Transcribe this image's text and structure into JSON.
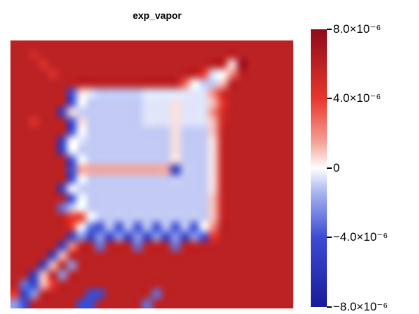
{
  "title": "exp_vapor",
  "title_color": "#000000",
  "background_color": "#ffffff",
  "chart_data": {
    "type": "heatmap",
    "title": "exp_vapor",
    "value_scale": "1e-6",
    "vmin": -8e-06,
    "vmax": 8e-06,
    "legend_position": "right",
    "grid_lines": "off",
    "colorbar": {
      "orientation": "vertical",
      "tick_values_1e6": [
        8,
        4,
        0,
        -4,
        -8
      ],
      "tick_labels": [
        "8.0×10⁻⁶",
        "4.0×10⁻⁶",
        "0",
        "−4.0×10⁻⁶",
        "−8.0×10⁻⁶"
      ]
    },
    "colormap_stops": [
      {
        "v": -8,
        "color": "#1a1a9c"
      },
      {
        "v": -4,
        "color": "#3b4cd4"
      },
      {
        "v": -1.5,
        "color": "#a5b0ee"
      },
      {
        "v": 0,
        "color": "#ffffff"
      },
      {
        "v": 1.5,
        "color": "#f4a298"
      },
      {
        "v": 4,
        "color": "#e8372d"
      },
      {
        "v": 8,
        "color": "#8e0c1a"
      }
    ],
    "grid": {
      "ncols": 30,
      "nrows": 28,
      "values_1e6": [
        [
          6,
          6,
          6,
          6,
          6,
          6,
          6,
          6,
          6,
          6,
          6,
          6,
          6,
          6,
          6,
          6,
          6,
          6,
          6,
          6,
          6,
          6,
          6,
          6,
          6,
          6,
          6,
          6,
          6,
          6
        ],
        [
          6,
          6,
          5,
          6,
          6,
          6,
          6,
          6,
          6,
          6,
          6,
          6,
          6,
          6,
          6,
          6,
          6,
          6,
          6,
          6,
          6,
          6,
          6,
          6,
          6,
          6,
          6,
          6,
          6,
          6
        ],
        [
          6,
          6,
          6,
          4.5,
          6,
          6,
          6,
          6,
          6,
          6,
          6,
          6,
          6,
          6,
          6,
          6,
          6,
          6,
          6,
          6,
          6,
          6,
          6,
          0.5,
          7.5,
          6,
          6,
          6,
          6,
          6
        ],
        [
          6,
          6,
          6,
          6,
          4.5,
          6,
          6,
          6,
          6,
          6,
          6,
          6,
          6,
          6,
          6,
          6,
          6,
          6,
          6,
          6,
          4,
          -0.5,
          0,
          2,
          6,
          6,
          6,
          6,
          6,
          6
        ],
        [
          6,
          6,
          6,
          6,
          6,
          6,
          6,
          6,
          6,
          6,
          6,
          6,
          6,
          6,
          6,
          6,
          6,
          6,
          3,
          0,
          -1,
          -1,
          1,
          6,
          6,
          6,
          6,
          6,
          6,
          6
        ],
        [
          6,
          6,
          6,
          6,
          6,
          6,
          -4,
          0.5,
          -0.5,
          -1,
          -1,
          -1,
          -1,
          -1,
          -0.5,
          -0.5,
          -0.5,
          -0.5,
          -0.5,
          -0.5,
          -0.5,
          2,
          5,
          6,
          6,
          6,
          6,
          6,
          6,
          6
        ],
        [
          6,
          6,
          6,
          6,
          6,
          6,
          -4,
          0,
          -1,
          -1,
          -1,
          -1,
          -1,
          -1,
          -0.5,
          -0.5,
          -0.5,
          0.5,
          -0.5,
          -0.5,
          -0.5,
          1,
          4,
          6,
          6,
          6,
          6,
          6,
          6,
          6
        ],
        [
          6,
          6,
          6,
          6,
          6,
          -5,
          0.5,
          -1,
          -1,
          -1,
          -1,
          -1,
          -1,
          -1,
          -0.5,
          -0.5,
          -0.5,
          0.5,
          -0.5,
          -0.5,
          -0.5,
          2,
          5,
          6,
          6,
          6,
          6,
          6,
          6,
          6
        ],
        [
          6,
          6,
          4.5,
          6,
          6,
          6,
          -4,
          0.5,
          -1,
          -1,
          -1,
          -1,
          -1,
          -1,
          -0.5,
          -0.5,
          -0.5,
          0.5,
          -0.5,
          -0.5,
          -0.5,
          1,
          5,
          6,
          6,
          6,
          6,
          6,
          6,
          6
        ],
        [
          6,
          6,
          6,
          6,
          6,
          6,
          -4,
          0,
          -1,
          -1,
          -1,
          -1,
          -1,
          -1,
          -1,
          -1,
          -1,
          0.5,
          -1,
          -1,
          -1,
          1,
          5.5,
          6,
          6,
          6,
          6,
          6,
          6,
          6
        ],
        [
          6,
          6,
          6,
          6,
          6,
          -5,
          0,
          -0.5,
          -1,
          -1,
          -1,
          -1,
          -1,
          -1,
          -1,
          -1,
          -1,
          0.5,
          -1,
          -1,
          -1,
          0.5,
          5.5,
          6,
          6,
          6,
          6,
          6,
          6,
          6
        ],
        [
          6,
          6,
          6,
          6,
          6,
          -5,
          0,
          -1,
          -1,
          -1,
          -1,
          -1,
          -1,
          -1,
          -1,
          -1,
          -1,
          0.5,
          -1,
          -1,
          -1,
          0.5,
          5.5,
          6,
          6,
          6,
          6,
          6,
          6,
          6
        ],
        [
          6,
          6,
          6,
          6,
          6,
          6,
          -4,
          0,
          -1,
          -1,
          -1,
          -1,
          -1,
          -1,
          -1,
          -1,
          -1,
          0.5,
          -1,
          -1,
          -1,
          0.5,
          5.5,
          6,
          6,
          6,
          6,
          6,
          6,
          6
        ],
        [
          6,
          6,
          6,
          6,
          6,
          6,
          -4,
          1.5,
          1.5,
          1.5,
          1.5,
          1.5,
          1.5,
          1.5,
          1.5,
          1.5,
          1.5,
          -6,
          -1,
          -1,
          -1,
          0.5,
          5.5,
          6,
          6,
          6,
          6,
          6,
          6,
          6
        ],
        [
          6,
          6,
          6,
          6,
          6,
          6,
          -4,
          0,
          -1,
          -1,
          -1,
          -1,
          -1,
          -1,
          -1,
          -1,
          -1,
          -1,
          -1,
          -1,
          -1,
          0.5,
          5.5,
          6,
          6,
          6,
          6,
          6,
          6,
          6
        ],
        [
          6,
          6,
          6,
          6,
          6,
          -5,
          0,
          -1,
          -1,
          -1,
          -1,
          -1,
          -1,
          -1,
          -1,
          -1,
          -1,
          -1,
          -1,
          -1,
          -1,
          0.5,
          5.5,
          6,
          6,
          6,
          6,
          6,
          6,
          6
        ],
        [
          6,
          6,
          6,
          6,
          6,
          6,
          -4,
          0,
          -1,
          -1,
          -1,
          -1,
          -1,
          -1,
          -1,
          -1,
          -1,
          -1,
          -1,
          -1,
          -1,
          1,
          5.5,
          6,
          6,
          6,
          6,
          6,
          6,
          6
        ],
        [
          6,
          6,
          6,
          6,
          6,
          -3,
          -1,
          0,
          -1,
          -1,
          -1,
          -1,
          -1,
          -1,
          -1,
          -1,
          -1,
          -1,
          -1,
          -1,
          -1,
          1,
          5.5,
          6,
          6,
          6,
          6,
          6,
          6,
          6
        ],
        [
          6,
          6,
          6,
          6,
          6,
          6,
          4,
          4,
          0,
          -1,
          -1,
          -1,
          -1,
          -1,
          -1,
          -1,
          -1,
          -1,
          -1,
          -1,
          -1,
          1,
          5.5,
          6,
          6,
          6,
          6,
          6,
          6,
          6
        ],
        [
          6,
          6,
          6,
          6,
          6,
          6,
          4,
          0,
          -3,
          -4,
          -1,
          -4,
          -1,
          -4,
          -1,
          -4,
          -1,
          -4,
          -1,
          -4,
          0,
          2,
          6,
          6,
          6,
          6,
          6,
          6,
          6,
          6
        ],
        [
          6,
          6,
          6,
          6,
          6,
          6,
          -5,
          -2,
          -5,
          -2,
          -5,
          -2,
          -5,
          -2,
          -5,
          -2,
          -5,
          -2,
          -5,
          -2,
          -4,
          4,
          6,
          6,
          6,
          6,
          6,
          6,
          6,
          6
        ],
        [
          6,
          6,
          6,
          6,
          6,
          -5,
          2,
          6,
          6,
          -3,
          6,
          6,
          6,
          -3,
          6,
          6,
          6,
          -3,
          6,
          6,
          6,
          6,
          6,
          6,
          6,
          6,
          6,
          6,
          6,
          6
        ],
        [
          6,
          6,
          6,
          6,
          -5,
          1,
          6,
          6,
          6,
          6,
          6,
          6,
          6,
          6,
          6,
          6,
          6,
          6,
          6,
          6,
          6,
          6,
          6,
          6,
          6,
          6,
          6,
          6,
          6,
          6
        ],
        [
          6,
          6,
          6,
          -5,
          1,
          6,
          -2,
          6,
          6,
          6,
          6,
          6,
          6,
          6,
          6,
          6,
          6,
          6,
          6,
          6,
          6,
          6,
          6,
          6,
          6,
          6,
          6,
          6,
          6,
          6
        ],
        [
          6,
          6,
          -5,
          1,
          6,
          -2,
          6,
          6,
          6,
          6,
          6,
          6,
          6,
          6,
          6,
          6,
          6,
          6,
          6,
          6,
          6,
          6,
          6,
          6,
          6,
          6,
          6,
          6,
          6,
          6
        ],
        [
          6,
          -3,
          -5,
          1,
          4,
          6,
          6,
          6,
          6,
          6,
          6,
          6,
          6,
          6,
          6,
          6,
          6,
          6,
          6,
          6,
          6,
          6,
          6,
          6,
          6,
          6,
          6,
          6,
          6,
          6
        ],
        [
          4,
          -5,
          -2,
          6,
          6,
          6,
          6,
          6,
          -4,
          -4,
          6,
          6,
          6,
          6,
          6,
          -3,
          6,
          6,
          6,
          6,
          6,
          6,
          6,
          6,
          6,
          6,
          6,
          6,
          6,
          6
        ],
        [
          -2,
          -4,
          6,
          6,
          6,
          6,
          6,
          -4,
          -4,
          6,
          6,
          6,
          6,
          6,
          -3,
          6,
          6,
          6,
          6,
          6,
          6,
          6,
          6,
          6,
          6,
          6,
          6,
          6,
          6,
          6
        ]
      ]
    }
  }
}
